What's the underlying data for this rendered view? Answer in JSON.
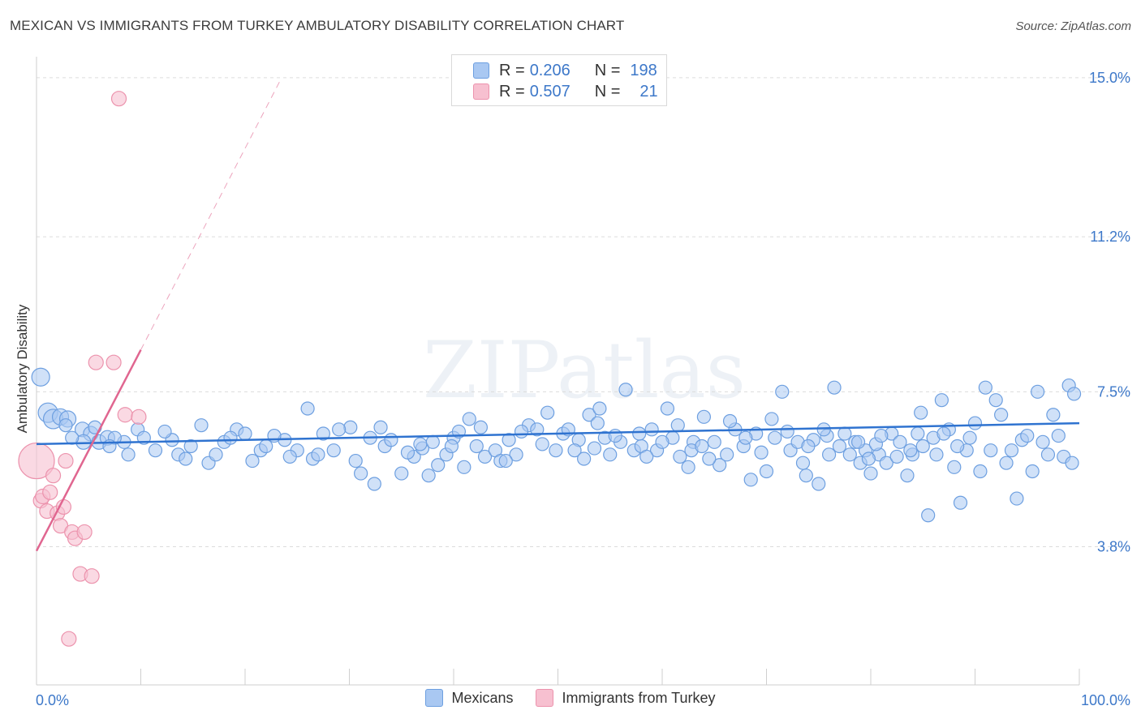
{
  "title": "MEXICAN VS IMMIGRANTS FROM TURKEY AMBULATORY DISABILITY CORRELATION CHART",
  "source": "Source: ZipAtlas.com",
  "watermark": "ZIPatlas",
  "colors": {
    "blue_fill": "#a9c8f2",
    "blue_stroke": "#6d9fe0",
    "blue_line": "#2f73d0",
    "pink_fill": "#f7c0d0",
    "pink_stroke": "#ec93ad",
    "pink_line": "#e06690",
    "axis_text": "#3d78c9",
    "grid": "#dcdcdc"
  },
  "legend_top": [
    {
      "r_label": "R =",
      "r_value": "0.206",
      "n_label": "N =",
      "n_value": "198"
    },
    {
      "r_label": "R =",
      "r_value": "0.507",
      "n_label": "N =",
      "n_value": "21"
    }
  ],
  "chart_data": {
    "type": "scatter",
    "title": "MEXICAN VS IMMIGRANTS FROM TURKEY AMBULATORY DISABILITY CORRELATION CHART",
    "xlabel": "",
    "ylabel": "Ambulatory Disability",
    "xlim": [
      0,
      100
    ],
    "ylim": [
      0.5,
      15.5
    ],
    "x_tick_labels": [
      "0.0%",
      "100.0%"
    ],
    "y_ticks": [
      3.8,
      7.5,
      11.2,
      15.0
    ],
    "y_tick_labels": [
      "3.8%",
      "7.5%",
      "11.2%",
      "15.0%"
    ],
    "legend": [
      "Mexicans",
      "Immigrants from Turkey"
    ],
    "series": [
      {
        "name": "Mexicans",
        "R": 0.206,
        "N": 198,
        "trend": {
          "x": [
            0,
            100
          ],
          "y": [
            6.25,
            6.75
          ]
        },
        "points": [
          [
            0.4,
            7.85,
            11
          ],
          [
            1.1,
            7.0,
            12
          ],
          [
            1.6,
            6.85,
            12
          ],
          [
            2.3,
            6.9,
            10
          ],
          [
            3.0,
            6.85,
            10
          ],
          [
            4.4,
            6.6,
            9
          ],
          [
            5.2,
            6.5,
            9
          ],
          [
            4.5,
            6.3,
            9
          ],
          [
            6.0,
            6.3,
            9
          ],
          [
            6.8,
            6.4,
            9
          ],
          [
            8.4,
            6.3,
            8
          ],
          [
            7.5,
            6.4,
            8
          ],
          [
            9.7,
            6.6,
            8
          ],
          [
            10.3,
            6.4,
            8
          ],
          [
            11.4,
            6.1,
            8
          ],
          [
            13.0,
            6.35,
            8
          ],
          [
            13.6,
            6.0,
            8
          ],
          [
            14.3,
            5.9,
            8
          ],
          [
            16.5,
            5.8,
            8
          ],
          [
            18.0,
            6.3,
            8
          ],
          [
            19.2,
            6.6,
            8
          ],
          [
            20.7,
            5.85,
            8
          ],
          [
            21.5,
            6.1,
            8
          ],
          [
            22.0,
            6.2,
            8
          ],
          [
            23.8,
            6.35,
            8
          ],
          [
            25.0,
            6.1,
            8
          ],
          [
            26.5,
            5.9,
            8
          ],
          [
            27.5,
            6.5,
            8
          ],
          [
            28.5,
            6.1,
            8
          ],
          [
            30.1,
            6.65,
            8
          ],
          [
            31.1,
            5.55,
            8
          ],
          [
            32.0,
            6.4,
            8
          ],
          [
            32.4,
            5.3,
            8
          ],
          [
            33.4,
            6.2,
            8
          ],
          [
            34.0,
            6.35,
            8
          ],
          [
            35.0,
            5.55,
            8
          ],
          [
            36.2,
            5.95,
            8
          ],
          [
            37.0,
            6.15,
            8
          ],
          [
            38.0,
            6.3,
            8
          ],
          [
            38.5,
            5.75,
            8
          ],
          [
            39.3,
            6.0,
            8
          ],
          [
            40.0,
            6.4,
            8
          ],
          [
            40.5,
            6.55,
            8
          ],
          [
            41.5,
            6.85,
            8
          ],
          [
            42.2,
            6.2,
            8
          ],
          [
            43.0,
            5.95,
            8
          ],
          [
            44.0,
            6.1,
            8
          ],
          [
            44.5,
            5.85,
            8
          ],
          [
            45.3,
            6.35,
            8
          ],
          [
            46.0,
            6.0,
            8
          ],
          [
            47.2,
            6.7,
            8
          ],
          [
            48.0,
            6.6,
            8
          ],
          [
            48.5,
            6.25,
            8
          ],
          [
            49.0,
            7.0,
            8
          ],
          [
            50.5,
            6.5,
            8
          ],
          [
            51.0,
            6.6,
            8
          ],
          [
            52.0,
            6.35,
            8
          ],
          [
            53.0,
            6.95,
            8
          ],
          [
            53.5,
            6.15,
            8
          ],
          [
            54.0,
            7.1,
            8
          ],
          [
            54.5,
            6.4,
            8
          ],
          [
            55.0,
            6.0,
            8
          ],
          [
            56.0,
            6.3,
            8
          ],
          [
            56.5,
            7.55,
            8
          ],
          [
            57.3,
            6.1,
            8
          ],
          [
            58.0,
            6.2,
            8
          ],
          [
            59.0,
            6.6,
            8
          ],
          [
            59.5,
            6.1,
            8
          ],
          [
            60.5,
            7.1,
            8
          ],
          [
            61.0,
            6.4,
            8
          ],
          [
            61.7,
            5.95,
            8
          ],
          [
            62.5,
            5.7,
            8
          ],
          [
            63.0,
            6.3,
            8
          ],
          [
            64.0,
            6.9,
            8
          ],
          [
            65.0,
            6.3,
            8
          ],
          [
            65.5,
            5.75,
            8
          ],
          [
            66.2,
            6.0,
            8
          ],
          [
            67.0,
            6.6,
            8
          ],
          [
            67.8,
            6.2,
            8
          ],
          [
            68.5,
            5.4,
            8
          ],
          [
            69.0,
            6.5,
            8
          ],
          [
            70.0,
            5.6,
            8
          ],
          [
            70.8,
            6.4,
            8
          ],
          [
            71.5,
            7.5,
            8
          ],
          [
            72.3,
            6.1,
            8
          ],
          [
            73.0,
            6.3,
            8
          ],
          [
            73.8,
            5.5,
            8
          ],
          [
            74.5,
            6.35,
            8
          ],
          [
            75.0,
            5.3,
            8
          ],
          [
            75.8,
            6.45,
            8
          ],
          [
            76.5,
            7.6,
            8
          ],
          [
            77.0,
            6.2,
            8
          ],
          [
            78.0,
            6.0,
            8
          ],
          [
            78.5,
            6.3,
            8
          ],
          [
            79.0,
            5.8,
            8
          ],
          [
            79.5,
            6.1,
            8
          ],
          [
            80.0,
            5.55,
            8
          ],
          [
            80.8,
            6.0,
            8
          ],
          [
            81.5,
            5.8,
            8
          ],
          [
            82.0,
            6.5,
            8
          ],
          [
            82.5,
            5.95,
            8
          ],
          [
            83.5,
            5.5,
            8
          ],
          [
            84.0,
            6.0,
            8
          ],
          [
            84.8,
            7.0,
            8
          ],
          [
            85.5,
            4.55,
            8
          ],
          [
            86.0,
            6.4,
            8
          ],
          [
            86.8,
            7.3,
            8
          ],
          [
            87.5,
            6.6,
            8
          ],
          [
            88.0,
            5.7,
            8
          ],
          [
            88.6,
            4.85,
            8
          ],
          [
            89.2,
            6.1,
            8
          ],
          [
            90.0,
            6.75,
            8
          ],
          [
            90.5,
            5.6,
            8
          ],
          [
            91.0,
            7.6,
            8
          ],
          [
            91.5,
            6.1,
            8
          ],
          [
            92.0,
            7.3,
            8
          ],
          [
            92.5,
            6.95,
            8
          ],
          [
            93.0,
            5.8,
            8
          ],
          [
            93.5,
            6.1,
            8
          ],
          [
            94.0,
            4.95,
            8
          ],
          [
            94.5,
            6.35,
            8
          ],
          [
            95.0,
            6.45,
            8
          ],
          [
            95.5,
            5.6,
            8
          ],
          [
            96.0,
            7.5,
            8
          ],
          [
            96.5,
            6.3,
            8
          ],
          [
            97.0,
            6.0,
            8
          ],
          [
            97.5,
            6.95,
            8
          ],
          [
            98.0,
            6.45,
            8
          ],
          [
            98.5,
            5.95,
            8
          ],
          [
            99.0,
            7.65,
            8
          ],
          [
            99.3,
            5.8,
            8
          ],
          [
            99.5,
            7.45,
            8
          ],
          [
            2.8,
            6.7,
            8
          ],
          [
            3.4,
            6.4,
            8
          ],
          [
            5.6,
            6.65,
            8
          ],
          [
            7.0,
            6.2,
            8
          ],
          [
            8.8,
            6.0,
            8
          ],
          [
            12.3,
            6.55,
            8
          ],
          [
            14.8,
            6.2,
            8
          ],
          [
            15.8,
            6.7,
            8
          ],
          [
            17.2,
            6.0,
            8
          ],
          [
            18.6,
            6.4,
            8
          ],
          [
            20.0,
            6.5,
            8
          ],
          [
            22.8,
            6.45,
            8
          ],
          [
            24.3,
            5.95,
            8
          ],
          [
            26.0,
            7.1,
            8
          ],
          [
            27.0,
            6.0,
            8
          ],
          [
            29.0,
            6.6,
            8
          ],
          [
            30.6,
            5.85,
            8
          ],
          [
            33.0,
            6.65,
            8
          ],
          [
            35.6,
            6.05,
            8
          ],
          [
            36.8,
            6.25,
            8
          ],
          [
            37.6,
            5.5,
            8
          ],
          [
            39.8,
            6.2,
            8
          ],
          [
            41.0,
            5.7,
            8
          ],
          [
            42.6,
            6.65,
            8
          ],
          [
            45.0,
            5.85,
            8
          ],
          [
            46.5,
            6.55,
            8
          ],
          [
            49.8,
            6.1,
            8
          ],
          [
            51.6,
            6.1,
            8
          ],
          [
            52.5,
            5.9,
            8
          ],
          [
            53.8,
            6.75,
            8
          ],
          [
            55.5,
            6.45,
            8
          ],
          [
            57.8,
            6.5,
            8
          ],
          [
            58.5,
            5.95,
            8
          ],
          [
            60.0,
            6.3,
            8
          ],
          [
            61.5,
            6.7,
            8
          ],
          [
            62.8,
            6.1,
            8
          ],
          [
            63.8,
            6.2,
            8
          ],
          [
            64.5,
            5.9,
            8
          ],
          [
            66.5,
            6.8,
            8
          ],
          [
            68.0,
            6.4,
            8
          ],
          [
            69.5,
            6.05,
            8
          ],
          [
            70.5,
            6.85,
            8
          ],
          [
            72.0,
            6.55,
            8
          ],
          [
            73.5,
            5.8,
            8
          ],
          [
            74.0,
            6.2,
            8
          ],
          [
            75.5,
            6.6,
            8
          ],
          [
            76.0,
            6.0,
            8
          ],
          [
            77.5,
            6.5,
            8
          ],
          [
            78.8,
            6.3,
            8
          ],
          [
            79.8,
            5.9,
            8
          ],
          [
            80.5,
            6.25,
            8
          ],
          [
            81.0,
            6.45,
            8
          ],
          [
            82.8,
            6.3,
            8
          ],
          [
            83.8,
            6.1,
            8
          ],
          [
            84.5,
            6.5,
            8
          ],
          [
            85.0,
            6.2,
            8
          ],
          [
            86.3,
            6.0,
            8
          ],
          [
            87.0,
            6.5,
            8
          ],
          [
            88.3,
            6.2,
            8
          ],
          [
            89.5,
            6.4,
            8
          ]
        ]
      },
      {
        "name": "Immigrants from Turkey",
        "R": 0.507,
        "N": 21,
        "trend": {
          "x": [
            0,
            10
          ],
          "y": [
            3.7,
            8.5
          ]
        },
        "trend_extension": {
          "x": [
            10,
            23.3
          ],
          "y": [
            8.5,
            14.9
          ]
        },
        "points": [
          [
            0.0,
            5.85,
            22
          ],
          [
            0.4,
            4.9,
            9
          ],
          [
            0.6,
            5.0,
            9
          ],
          [
            1.0,
            4.65,
            9
          ],
          [
            1.3,
            5.1,
            9
          ],
          [
            1.6,
            5.5,
            9
          ],
          [
            2.0,
            4.6,
            9
          ],
          [
            2.3,
            4.3,
            9
          ],
          [
            2.6,
            4.75,
            9
          ],
          [
            2.8,
            5.85,
            9
          ],
          [
            3.1,
            1.6,
            9
          ],
          [
            3.4,
            4.15,
            9
          ],
          [
            3.7,
            4.0,
            9
          ],
          [
            4.2,
            3.15,
            9
          ],
          [
            4.6,
            4.15,
            9
          ],
          [
            5.3,
            3.1,
            9
          ],
          [
            5.7,
            8.2,
            9
          ],
          [
            7.4,
            8.2,
            9
          ],
          [
            8.5,
            6.95,
            9
          ],
          [
            9.8,
            6.9,
            9
          ],
          [
            7.9,
            14.5,
            9
          ]
        ]
      }
    ]
  }
}
